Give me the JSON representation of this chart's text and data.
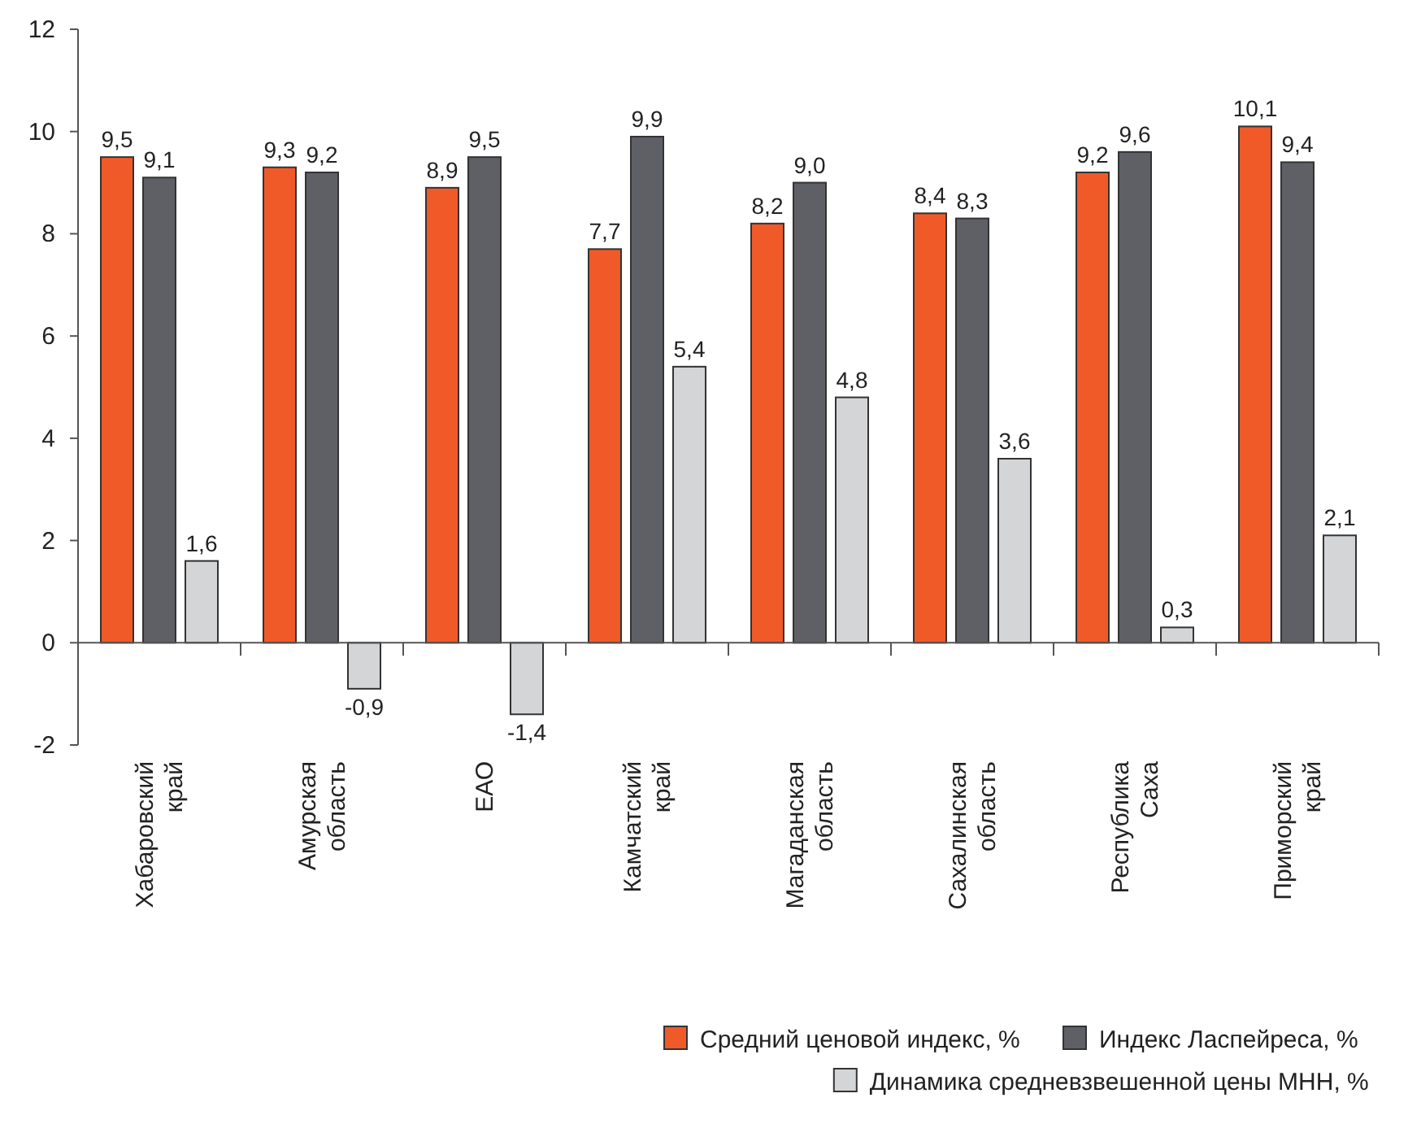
{
  "chart_data": {
    "type": "bar",
    "categories": [
      "Хабаровский край",
      "Амурская область",
      "ЕАО",
      "Камчатский край",
      "Магаданская область",
      "Сахалинская область",
      "Республика Саха",
      "Приморский край"
    ],
    "series": [
      {
        "name": "Средний ценовой индекс, %",
        "color": "#f05a28",
        "values": [
          9.5,
          9.3,
          8.9,
          7.7,
          8.2,
          8.4,
          9.2,
          10.1
        ],
        "value_labels": [
          "9,5",
          "9,3",
          "8,9",
          "7,7",
          "8,2",
          "8,4",
          "9,2",
          "10,1"
        ]
      },
      {
        "name": "Индекс Ласпейреса, %",
        "color": "#5f6066",
        "values": [
          9.1,
          9.2,
          9.5,
          9.9,
          9.0,
          8.3,
          9.6,
          9.4
        ],
        "value_labels": [
          "9,1",
          "9,2",
          "9,5",
          "9,9",
          "9,0",
          "8,3",
          "9,6",
          "9,4"
        ]
      },
      {
        "name": "Динамика средневзвешенной цены МНН, %",
        "color": "#d4d5d7",
        "values": [
          1.6,
          -0.9,
          -1.4,
          5.4,
          4.8,
          3.6,
          0.3,
          2.1
        ],
        "value_labels": [
          "1,6",
          "-0,9",
          "-1,4",
          "5,4",
          "4,8",
          "3,6",
          "0,3",
          "2,1"
        ]
      }
    ],
    "ylim": [
      -2,
      12
    ],
    "yticks": [
      -2,
      0,
      2,
      4,
      6,
      8,
      10,
      12
    ],
    "legend": "bottom right"
  }
}
